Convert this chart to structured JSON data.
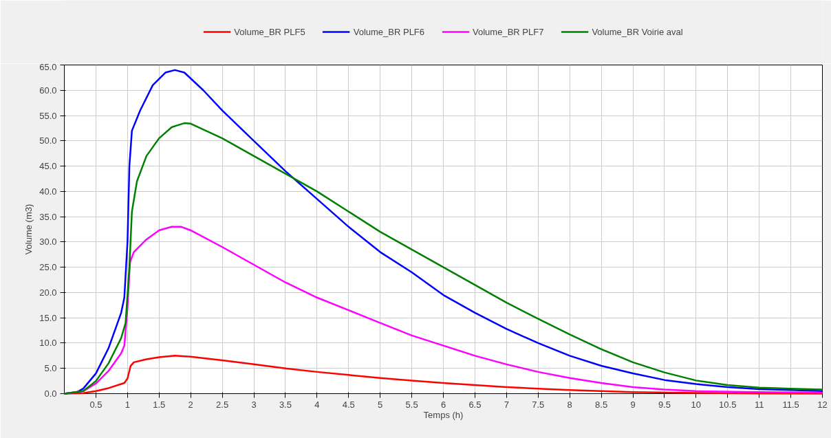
{
  "chart_data": {
    "type": "line",
    "xlabel": "Temps (h)",
    "ylabel": "Volume (m3)",
    "xlim": [
      0,
      12
    ],
    "ylim": [
      0,
      65
    ],
    "xticks": [
      0.5,
      1,
      1.5,
      2,
      2.5,
      3,
      3.5,
      4,
      4.5,
      5,
      5.5,
      6,
      6.5,
      7,
      7.5,
      8,
      8.5,
      9,
      9.5,
      10,
      10.5,
      11,
      11.5,
      12
    ],
    "yticks": [
      {
        "value": 0,
        "label": "0.0"
      },
      {
        "value": 5,
        "label": "5.0"
      },
      {
        "value": 10,
        "label": "10.0"
      },
      {
        "value": 15,
        "label": "15.0"
      },
      {
        "value": 20,
        "label": "20.0"
      },
      {
        "value": 25,
        "label": "25.0"
      },
      {
        "value": 30,
        "label": "30.0"
      },
      {
        "value": 35,
        "label": "35.0"
      },
      {
        "value": 40,
        "label": "40.0"
      },
      {
        "value": 45,
        "label": "45.0"
      },
      {
        "value": 50,
        "label": "50.0"
      },
      {
        "value": 55,
        "label": "55.0"
      },
      {
        "value": 60,
        "label": "60.0"
      },
      {
        "value": 65,
        "label": "65.0"
      }
    ],
    "grid": true,
    "legend": "top",
    "marker": "none",
    "line_style": "solid",
    "series": [
      {
        "name": "Volume_BR PLF5",
        "color": "#ff0000",
        "x": [
          0,
          0.3,
          0.5,
          0.7,
          0.95,
          1.0,
          1.05,
          1.1,
          1.3,
          1.5,
          1.75,
          2,
          2.5,
          3,
          3.5,
          4,
          4.5,
          5,
          5.5,
          6,
          6.5,
          7,
          7.5,
          8,
          8.5,
          9,
          10,
          11,
          12
        ],
        "values": [
          0,
          0.1,
          0.5,
          1.1,
          2.1,
          3,
          5.5,
          6.2,
          6.8,
          7.2,
          7.5,
          7.3,
          6.6,
          5.8,
          5,
          4.3,
          3.7,
          3.1,
          2.6,
          2.1,
          1.7,
          1.3,
          1,
          0.7,
          0.5,
          0.3,
          0.15,
          0.05,
          0
        ]
      },
      {
        "name": "Volume_BR PLF6",
        "color": "#0000ff",
        "x": [
          0,
          0.2,
          0.3,
          0.5,
          0.7,
          0.9,
          0.95,
          1.0,
          1.03,
          1.07,
          1.2,
          1.4,
          1.6,
          1.75,
          1.9,
          2.2,
          2.5,
          3,
          3.5,
          4,
          4.5,
          5,
          5.5,
          6,
          6.5,
          7,
          7.5,
          8,
          8.5,
          9,
          9.5,
          10,
          10.5,
          11,
          11.5,
          12
        ],
        "values": [
          0,
          0.3,
          1,
          4,
          9,
          16,
          19,
          30,
          45,
          52,
          56,
          61,
          63.5,
          64,
          63.5,
          60,
          56,
          50,
          44,
          38.5,
          33,
          28,
          24,
          19.5,
          16,
          12.8,
          10,
          7.5,
          5.5,
          4,
          2.7,
          1.9,
          1.3,
          0.9,
          0.7,
          0.5
        ]
      },
      {
        "name": "Volume_BR PLF7",
        "color": "#ff00ff",
        "x": [
          0,
          0.3,
          0.5,
          0.7,
          0.9,
          0.95,
          1.0,
          1.04,
          1.1,
          1.3,
          1.5,
          1.7,
          1.85,
          2,
          2.5,
          3,
          3.5,
          4,
          4.5,
          5,
          5.5,
          6,
          6.5,
          7,
          7.5,
          8,
          8.5,
          9,
          9.5,
          10,
          11,
          12
        ],
        "values": [
          0,
          0.5,
          2,
          4.5,
          8,
          9.5,
          17,
          26,
          28,
          30.5,
          32.3,
          33,
          33,
          32.3,
          29,
          25.5,
          22,
          19,
          16.5,
          14,
          11.5,
          9.5,
          7.5,
          5.8,
          4.3,
          3.1,
          2.1,
          1.3,
          0.8,
          0.5,
          0.3,
          0.2
        ]
      },
      {
        "name": "Volume_BR Voirie aval",
        "color": "#008000",
        "x": [
          0,
          0.3,
          0.5,
          0.7,
          0.9,
          0.97,
          1.03,
          1.07,
          1.15,
          1.3,
          1.5,
          1.7,
          1.9,
          2,
          2.5,
          3,
          3.5,
          4,
          4.5,
          5,
          5.5,
          6,
          6.5,
          7,
          7.5,
          8,
          8.5,
          9,
          9.5,
          10,
          10.5,
          11,
          11.5,
          12
        ],
        "values": [
          0,
          0.5,
          2.5,
          6,
          11,
          14,
          25,
          36,
          42,
          47,
          50.5,
          52.7,
          53.5,
          53.4,
          50.5,
          47,
          43.5,
          40,
          36,
          32,
          28.5,
          25,
          21.5,
          18,
          14.8,
          11.7,
          8.8,
          6.2,
          4.2,
          2.6,
          1.7,
          1.2,
          1,
          0.8
        ]
      }
    ]
  }
}
